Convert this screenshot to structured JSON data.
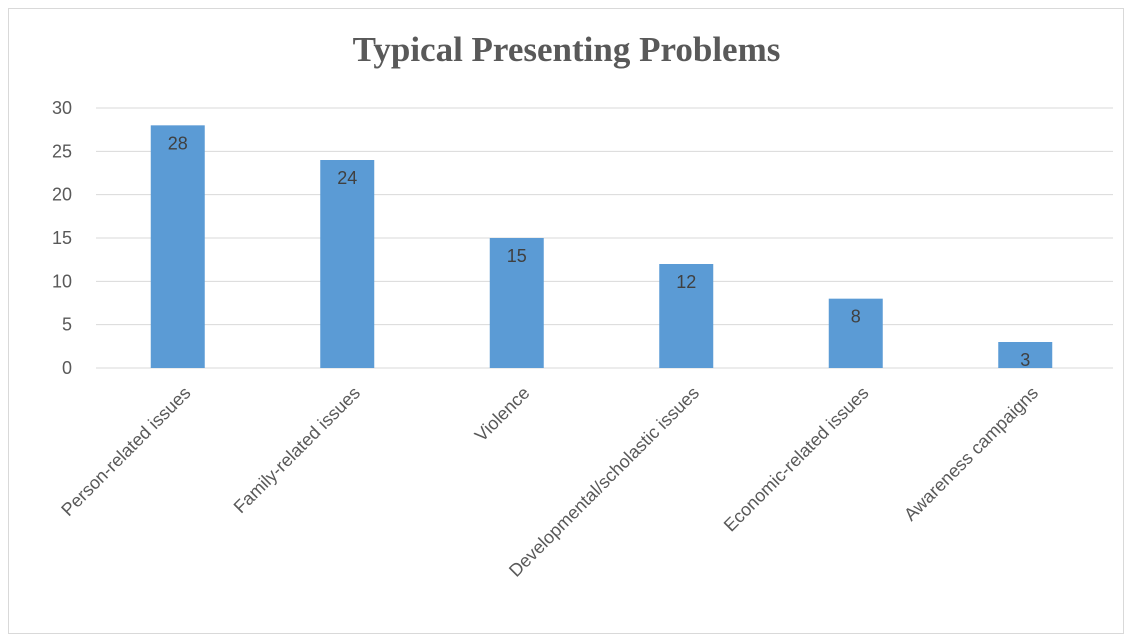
{
  "chart_data": {
    "type": "bar",
    "title": "Typical Presenting Problems",
    "categories": [
      "Person-related issues",
      "Family-related issues",
      "Violence",
      "Developmental/scholastic issues",
      "Economic-related issues",
      "Awareness campaigns"
    ],
    "values": [
      28,
      24,
      15,
      12,
      8,
      3
    ],
    "ylim": [
      0,
      30
    ],
    "yticks": [
      0,
      5,
      10,
      15,
      20,
      25,
      30
    ],
    "grid": true,
    "legend": "none",
    "bar_color": "#5b9bd5",
    "gridline_color": "#d9d9d9",
    "text_color": "#595959"
  }
}
